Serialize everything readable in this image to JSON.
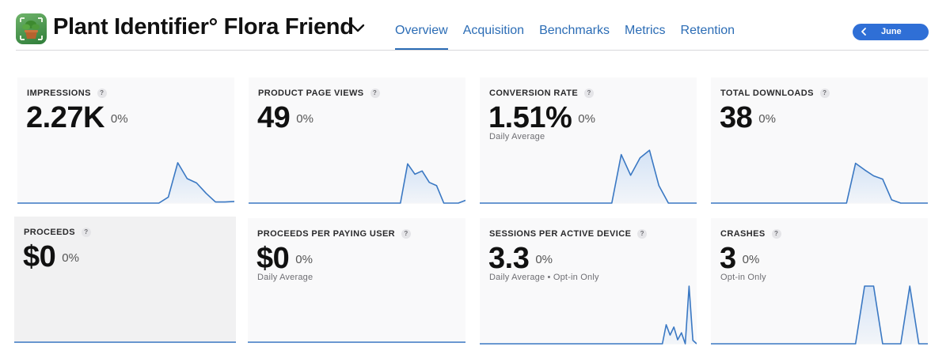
{
  "header": {
    "app_title": "Plant Identifier° Flora Friend",
    "tabs": [
      {
        "label": "Overview",
        "active": true
      },
      {
        "label": "Acquisition",
        "active": false
      },
      {
        "label": "Benchmarks",
        "active": false
      },
      {
        "label": "Metrics",
        "active": false
      },
      {
        "label": "Retention",
        "active": false
      }
    ],
    "month_label": "June"
  },
  "colors": {
    "accent": "#2b6cb5",
    "pill": "#2f6fd6",
    "spark_line": "#3a78c3",
    "spark_fill": "#cfe0f5"
  },
  "metrics": [
    {
      "label": "IMPRESSIONS",
      "value": "2.27K",
      "change": "0%",
      "sub": "",
      "help": "?",
      "series": [
        0,
        0,
        0,
        0,
        0,
        0,
        0,
        0,
        0,
        0,
        0,
        0,
        0,
        0,
        0,
        0,
        0.11,
        0.74,
        0.45,
        0.37,
        0.18,
        0.02,
        0.02,
        0.03
      ]
    },
    {
      "label": "PRODUCT PAGE VIEWS",
      "value": "49",
      "change": "0%",
      "sub": "",
      "help": "?",
      "series": [
        0,
        0,
        0,
        0,
        0,
        0,
        0,
        0,
        0,
        0,
        0,
        0,
        0,
        0,
        0,
        0,
        0,
        0,
        0,
        0,
        0,
        0,
        0.72,
        0.53,
        0.59,
        0.38,
        0.32,
        0,
        0,
        0,
        0.05
      ]
    },
    {
      "label": "CONVERSION RATE",
      "value": "1.51%",
      "change": "0%",
      "sub": "Daily Average",
      "help": "?",
      "series": [
        0,
        0,
        0,
        0,
        0,
        0,
        0,
        0,
        0,
        0,
        0,
        0,
        0,
        0,
        0,
        0.89,
        0.51,
        0.83,
        0.97,
        0.32,
        0,
        0,
        0,
        0
      ]
    },
    {
      "label": "TOTAL DOWNLOADS",
      "value": "38",
      "change": "0%",
      "sub": "",
      "help": "?",
      "series": [
        0,
        0,
        0,
        0,
        0,
        0,
        0,
        0,
        0,
        0,
        0,
        0,
        0,
        0,
        0,
        0,
        0.73,
        0.61,
        0.5,
        0.44,
        0.06,
        0,
        0,
        0,
        0
      ]
    },
    {
      "label": "PROCEEDS",
      "value": "$0",
      "change": "0%",
      "sub": "",
      "help": "?",
      "series": [
        0,
        0,
        0,
        0,
        0,
        0,
        0,
        0,
        0,
        0,
        0,
        0,
        0,
        0,
        0,
        0,
        0,
        0,
        0,
        0,
        0,
        0,
        0,
        0,
        0
      ]
    },
    {
      "label": "PROCEEDS PER PAYING USER",
      "value": "$0",
      "change": "0%",
      "sub": "Daily Average",
      "help": "?",
      "series": [
        0,
        0,
        0,
        0,
        0,
        0,
        0,
        0,
        0,
        0,
        0,
        0,
        0,
        0,
        0,
        0,
        0,
        0,
        0,
        0,
        0,
        0,
        0,
        0,
        0
      ]
    },
    {
      "label": "SESSIONS PER ACTIVE DEVICE",
      "value": "3.3",
      "change": "0%",
      "sub": "Daily Average • Opt-in Only",
      "help": "?",
      "series": [
        0,
        0,
        0,
        0,
        0,
        0,
        0,
        0,
        0,
        0,
        0,
        0,
        0,
        0,
        0,
        0,
        0,
        0,
        0,
        0,
        0,
        0,
        0,
        0,
        0,
        0,
        0,
        0,
        0,
        0,
        0,
        0,
        0,
        0,
        0,
        0,
        0,
        0,
        0,
        0,
        0,
        0,
        0,
        0,
        0,
        0,
        0,
        0,
        0,
        0.33,
        0.15,
        0.29,
        0.07,
        0.19,
        0,
        1.0,
        0.06,
        0
      ]
    },
    {
      "label": "CRASHES",
      "value": "3",
      "change": "0%",
      "sub": "Opt-in Only",
      "help": "?",
      "series": [
        0,
        0,
        0,
        0,
        0,
        0,
        0,
        0,
        0,
        0,
        0,
        0,
        0,
        0,
        0,
        0,
        0,
        1,
        1,
        0,
        0,
        0,
        1,
        0,
        0
      ]
    }
  ]
}
